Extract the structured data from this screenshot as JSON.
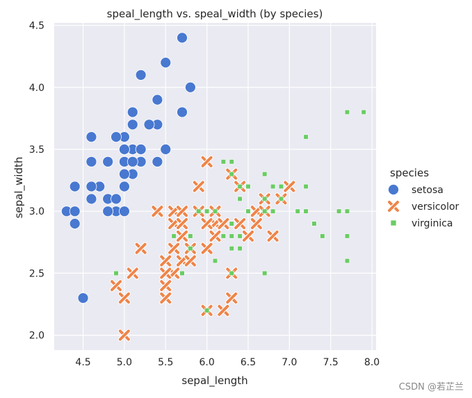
{
  "chart_data": {
    "type": "scatter",
    "title": "speal_length vs. speal_width (by species)",
    "xlabel": "sepal_length",
    "ylabel": "sepal_width",
    "xlim": [
      4.15,
      8.05
    ],
    "ylim": [
      1.88,
      4.52
    ],
    "xticks": [
      4.5,
      5.0,
      5.5,
      6.0,
      6.5,
      7.0,
      7.5,
      8.0
    ],
    "yticks": [
      2.0,
      2.5,
      3.0,
      3.5,
      4.0,
      4.5
    ],
    "grid": true,
    "background_color": "#eaeaf2",
    "legend_title": "species",
    "legend_placement": "right",
    "series": [
      {
        "name": "setosa",
        "marker": "circle",
        "color": "#4878d0",
        "x": [
          5.1,
          4.9,
          4.7,
          4.6,
          5.0,
          5.4,
          4.6,
          5.0,
          4.4,
          4.9,
          5.4,
          4.8,
          4.8,
          4.3,
          5.8,
          5.7,
          5.4,
          5.1,
          5.7,
          5.1,
          5.4,
          5.1,
          4.6,
          5.1,
          4.8,
          5.0,
          5.0,
          5.2,
          5.2,
          4.7,
          4.8,
          5.4,
          5.2,
          5.5,
          4.9,
          5.0,
          5.5,
          4.9,
          4.4,
          5.1,
          5.0,
          4.5,
          4.4,
          5.0,
          5.1,
          4.8,
          5.1,
          4.6,
          5.3,
          5.0
        ],
        "y": [
          3.5,
          3.0,
          3.2,
          3.1,
          3.6,
          3.9,
          3.4,
          3.4,
          2.9,
          3.1,
          3.7,
          3.4,
          3.0,
          3.0,
          4.0,
          4.4,
          3.9,
          3.5,
          3.8,
          3.8,
          3.4,
          3.7,
          3.6,
          3.3,
          3.4,
          3.0,
          3.4,
          3.5,
          3.4,
          3.2,
          3.1,
          3.4,
          4.1,
          4.2,
          3.1,
          3.2,
          3.5,
          3.6,
          3.0,
          3.4,
          3.5,
          2.3,
          3.2,
          3.5,
          3.8,
          3.0,
          3.8,
          3.2,
          3.7,
          3.3
        ]
      },
      {
        "name": "versicolor",
        "marker": "x",
        "color": "#ee854a",
        "x": [
          7.0,
          6.4,
          6.9,
          5.5,
          6.5,
          5.7,
          6.3,
          4.9,
          6.6,
          5.2,
          5.0,
          5.9,
          6.0,
          6.1,
          5.6,
          6.7,
          5.6,
          5.8,
          6.2,
          5.6,
          5.9,
          6.1,
          6.3,
          6.1,
          6.4,
          6.6,
          6.8,
          6.7,
          6.0,
          5.7,
          5.5,
          5.5,
          5.8,
          6.0,
          5.4,
          6.0,
          6.7,
          6.3,
          5.6,
          5.5,
          5.5,
          6.1,
          5.8,
          5.0,
          5.6,
          5.7,
          5.7,
          6.2,
          5.1,
          5.7
        ],
        "y": [
          3.2,
          3.2,
          3.1,
          2.3,
          2.8,
          2.8,
          3.3,
          2.4,
          2.9,
          2.7,
          2.0,
          3.0,
          2.2,
          2.9,
          2.9,
          3.1,
          3.0,
          2.7,
          2.2,
          2.5,
          3.2,
          2.8,
          2.5,
          2.8,
          2.9,
          3.0,
          2.8,
          3.0,
          2.9,
          2.6,
          2.4,
          2.4,
          2.7,
          2.7,
          3.0,
          3.4,
          3.1,
          2.3,
          3.0,
          2.5,
          2.6,
          3.0,
          2.6,
          2.3,
          2.7,
          3.0,
          2.9,
          2.9,
          2.5,
          2.8
        ]
      },
      {
        "name": "virginica",
        "marker": "square",
        "color": "#6acc64",
        "x": [
          6.3,
          5.8,
          7.1,
          6.3,
          6.5,
          7.6,
          4.9,
          7.3,
          6.7,
          7.2,
          6.5,
          6.4,
          6.8,
          5.7,
          5.8,
          6.4,
          6.5,
          7.7,
          7.7,
          6.0,
          6.9,
          5.6,
          7.7,
          6.3,
          6.7,
          7.2,
          6.2,
          6.1,
          6.4,
          7.2,
          7.4,
          7.9,
          6.4,
          6.3,
          6.1,
          7.7,
          6.3,
          6.4,
          6.0,
          6.9,
          6.7,
          6.9,
          5.8,
          6.8,
          6.7,
          6.7,
          6.3,
          6.5,
          6.2,
          5.9
        ],
        "y": [
          3.3,
          2.7,
          3.0,
          2.9,
          3.0,
          3.0,
          2.5,
          2.9,
          2.5,
          3.6,
          3.2,
          2.7,
          3.0,
          2.5,
          2.8,
          3.2,
          3.0,
          3.8,
          2.6,
          2.2,
          3.2,
          2.8,
          2.8,
          2.7,
          3.3,
          3.2,
          2.8,
          3.0,
          2.8,
          3.0,
          2.8,
          3.8,
          2.8,
          2.8,
          2.6,
          3.0,
          3.4,
          3.1,
          3.0,
          3.1,
          3.1,
          3.1,
          2.7,
          3.2,
          3.3,
          3.0,
          2.5,
          3.0,
          3.4,
          3.0
        ]
      }
    ]
  },
  "watermark": "CSDN @若芷兰"
}
